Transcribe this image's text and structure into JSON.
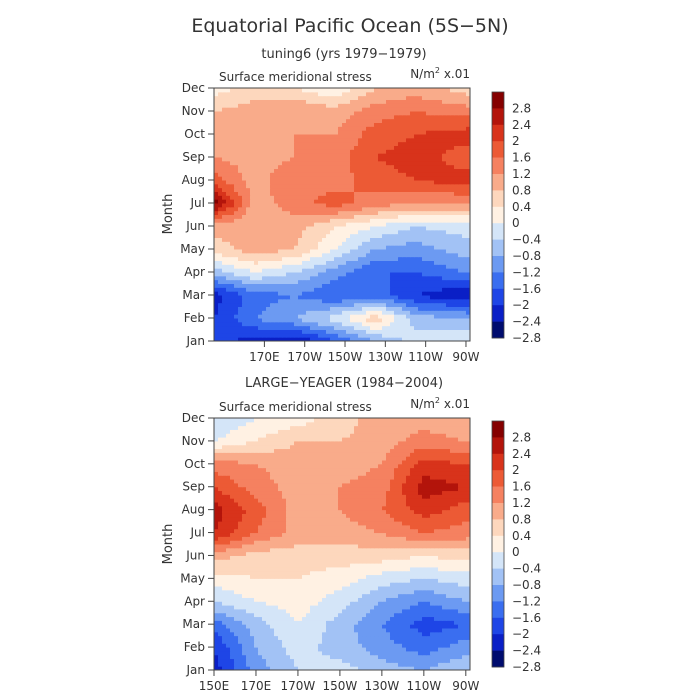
{
  "figure": {
    "title": "Equatorial Pacific Ocean (5S−5N)"
  },
  "chart_data": [
    {
      "type": "heatmap",
      "subtitle": "tuning6 (yrs 1979−1979)",
      "variable_label": "Surface meridional stress",
      "units_prefix": "N/m",
      "units_sup": "2",
      "units_suffix": " x.01",
      "xlabel": "",
      "ylabel": "Month",
      "x_ticks": [
        "170E",
        "170W",
        "150W",
        "130W",
        "110W",
        "90W"
      ],
      "y_ticks": [
        "Jan",
        "Feb",
        "Mar",
        "Apr",
        "May",
        "Jun",
        "Jul",
        "Aug",
        "Sep",
        "Oct",
        "Nov",
        "Dec"
      ],
      "x_lon": [
        145,
        165,
        185,
        205,
        225,
        245,
        270
      ],
      "z": [
        [
          -2.2,
          -2.6,
          -2.8,
          -2.0,
          -1.2,
          -0.6,
          -0.4
        ],
        [
          -2.4,
          -1.6,
          -1.2,
          -0.6,
          0.3,
          -1.0,
          -1.2
        ],
        [
          -2.6,
          -1.8,
          -1.6,
          -2.0,
          -1.8,
          -2.4,
          -2.8
        ],
        [
          -1.0,
          -0.4,
          -0.8,
          -1.4,
          -2.0,
          -2.0,
          -1.6
        ],
        [
          0.2,
          0.6,
          0.4,
          -0.4,
          -1.2,
          -1.4,
          -1.0
        ],
        [
          0.6,
          0.4,
          0.6,
          0.0,
          -0.4,
          -0.8,
          -0.6
        ],
        [
          2.6,
          0.6,
          1.0,
          1.4,
          1.0,
          0.8,
          0.8
        ],
        [
          1.4,
          0.6,
          1.2,
          1.0,
          1.4,
          1.6,
          1.8
        ],
        [
          0.8,
          0.6,
          0.8,
          1.0,
          1.6,
          1.8,
          1.4
        ],
        [
          0.6,
          0.8,
          0.8,
          0.8,
          1.4,
          1.6,
          1.8
        ],
        [
          0.4,
          0.6,
          0.8,
          0.6,
          1.0,
          1.2,
          1.0
        ],
        [
          -0.2,
          0.2,
          0.0,
          -0.4,
          0.4,
          0.6,
          0.2
        ]
      ],
      "colorbar": {
        "labels": [
          "2.8",
          "2.4",
          "2",
          "1.6",
          "1.2",
          "0.8",
          "0.4",
          "0",
          "−0.4",
          "−0.8",
          "−1.2",
          "−1.6",
          "−2",
          "−2.4",
          "−2.8"
        ]
      }
    },
    {
      "type": "heatmap",
      "subtitle": "LARGE−YEAGER (1984−2004)",
      "variable_label": "Surface meridional stress",
      "units_prefix": "N/m",
      "units_sup": "2",
      "units_suffix": " x.01",
      "xlabel": "",
      "ylabel": "Month",
      "x_ticks": [
        "150E",
        "170E",
        "170W",
        "150W",
        "130W",
        "110W",
        "90W"
      ],
      "y_ticks": [
        "Jan",
        "Feb",
        "Mar",
        "Apr",
        "May",
        "Jun",
        "Jul",
        "Aug",
        "Sep",
        "Oct",
        "Nov",
        "Dec"
      ],
      "x_lon": [
        150,
        170,
        190,
        210,
        230,
        250,
        270
      ],
      "z": [
        [
          -2.6,
          -1.4,
          -0.8,
          -0.6,
          -1.0,
          -1.2,
          -0.8
        ],
        [
          -2.4,
          -1.2,
          -0.6,
          -1.0,
          -1.4,
          -1.8,
          -1.4
        ],
        [
          -1.8,
          -1.0,
          -0.4,
          -1.0,
          -1.6,
          -2.2,
          -2.0
        ],
        [
          -0.8,
          -0.4,
          -0.2,
          -0.6,
          -1.2,
          -1.6,
          -1.2
        ],
        [
          -0.2,
          0.0,
          0.0,
          -0.2,
          -0.6,
          -0.8,
          -0.6
        ],
        [
          0.6,
          0.2,
          0.2,
          0.2,
          0.2,
          0.0,
          0.2
        ],
        [
          2.0,
          1.2,
          0.6,
          0.6,
          0.8,
          1.2,
          1.0
        ],
        [
          2.2,
          1.4,
          0.6,
          0.8,
          1.2,
          1.8,
          1.4
        ],
        [
          1.6,
          1.0,
          0.6,
          0.8,
          1.0,
          2.2,
          2.0
        ],
        [
          1.0,
          0.8,
          0.6,
          0.6,
          0.8,
          1.8,
          1.6
        ],
        [
          -0.4,
          0.0,
          0.4,
          0.4,
          0.6,
          1.0,
          0.8
        ],
        [
          -0.8,
          -0.4,
          -0.2,
          0.2,
          0.6,
          0.6,
          0.4
        ]
      ],
      "colorbar": {
        "labels": [
          "2.8",
          "2.4",
          "2",
          "1.6",
          "1.2",
          "0.8",
          "0.4",
          "0",
          "−0.4",
          "−0.8",
          "−1.2",
          "−1.6",
          "−2",
          "−2.4",
          "−2.8"
        ]
      }
    }
  ],
  "colors": {
    "palette": [
      "#000c6e",
      "#0a1fc6",
      "#1e45e6",
      "#3a6ef0",
      "#6c9af2",
      "#a2c2f5",
      "#d4e5f8",
      "#fff1e3",
      "#fdd7bd",
      "#f9ab8a",
      "#f58160",
      "#ec5a35",
      "#d8331b",
      "#b3140b",
      "#850000"
    ],
    "axis": "#444444"
  }
}
